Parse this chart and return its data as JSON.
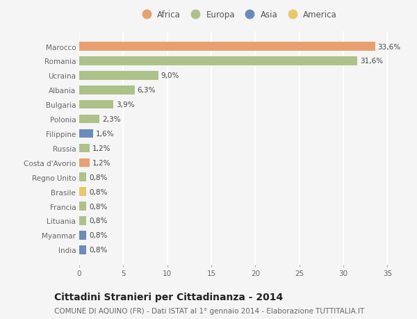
{
  "categories": [
    "India",
    "Myanmar",
    "Lituania",
    "Francia",
    "Brasile",
    "Regno Unito",
    "Costa d'Avorio",
    "Russia",
    "Filippine",
    "Polonia",
    "Bulgaria",
    "Albania",
    "Ucraina",
    "Romania",
    "Marocco"
  ],
  "values": [
    0.8,
    0.8,
    0.8,
    0.8,
    0.8,
    0.8,
    1.2,
    1.2,
    1.6,
    2.3,
    3.9,
    6.3,
    9.0,
    31.6,
    33.6
  ],
  "labels": [
    "0,8%",
    "0,8%",
    "0,8%",
    "0,8%",
    "0,8%",
    "0,8%",
    "1,2%",
    "1,2%",
    "1,6%",
    "2,3%",
    "3,9%",
    "6,3%",
    "9,0%",
    "31,6%",
    "33,6%"
  ],
  "colors": [
    "#6b8cba",
    "#6b8cba",
    "#adc18a",
    "#adc18a",
    "#e8c86a",
    "#adc18a",
    "#e8a070",
    "#adc18a",
    "#6b8cba",
    "#adc18a",
    "#adc18a",
    "#adc18a",
    "#adc18a",
    "#adc18a",
    "#e8a070"
  ],
  "legend": [
    {
      "label": "Africa",
      "color": "#e8a070"
    },
    {
      "label": "Europa",
      "color": "#adc18a"
    },
    {
      "label": "Asia",
      "color": "#6b8cba"
    },
    {
      "label": "America",
      "color": "#e8c86a"
    }
  ],
  "xlim": [
    0,
    36
  ],
  "xticks": [
    0,
    5,
    10,
    15,
    20,
    25,
    30,
    35
  ],
  "title": "Cittadini Stranieri per Cittadinanza - 2014",
  "subtitle": "COMUNE DI AQUINO (FR) - Dati ISTAT al 1° gennaio 2014 - Elaborazione TUTTITALIA.IT",
  "background_color": "#f5f5f5",
  "grid_color": "#ffffff",
  "bar_height": 0.6,
  "title_fontsize": 10,
  "subtitle_fontsize": 7.5,
  "tick_fontsize": 7.5,
  "label_fontsize": 7.5
}
